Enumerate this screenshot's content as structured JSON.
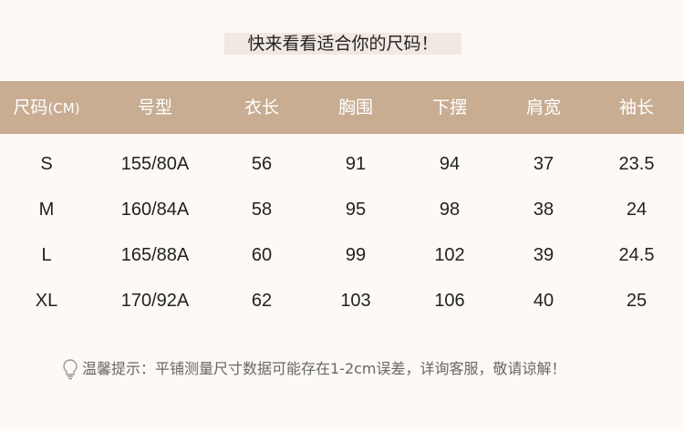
{
  "title": "快来看看适合你的尺码！",
  "table": {
    "headers": [
      "尺码",
      "号型",
      "衣长",
      "胸围",
      "下摆",
      "肩宽",
      "袖长"
    ],
    "unit": "(CM)",
    "rows": [
      [
        "S",
        "155/80A",
        "56",
        "91",
        "94",
        "37",
        "23.5"
      ],
      [
        "M",
        "160/84A",
        "58",
        "95",
        "98",
        "38",
        "24"
      ],
      [
        "L",
        "165/88A",
        "60",
        "99",
        "102",
        "39",
        "24.5"
      ],
      [
        "XL",
        "170/92A",
        "62",
        "103",
        "106",
        "40",
        "25"
      ]
    ]
  },
  "tip": {
    "icon": "lightbulb-icon",
    "text": "温馨提示：平铺测量尺寸数据可能存在1-2cm误差，详询客服，敬请谅解！"
  },
  "colors": {
    "header": "#c8ad93",
    "background": "#fdf9f5"
  }
}
